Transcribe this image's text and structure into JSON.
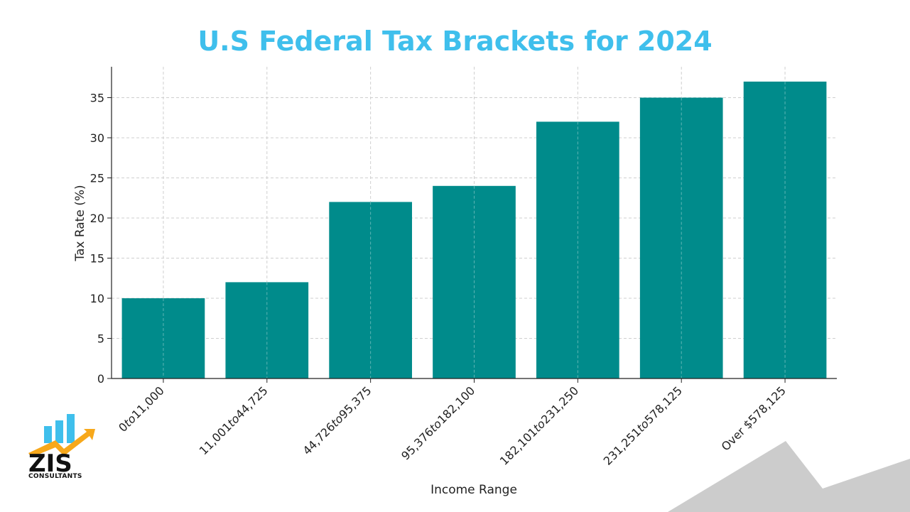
{
  "chart_data": {
    "type": "bar",
    "title": "U.S Federal Tax Brackets for 2024",
    "xlabel": "Income Range",
    "ylabel": "Tax Rate (%)",
    "categories": [
      "0to11,000",
      "11,001to44,725",
      "44,726to95,375",
      "95,376to182,100",
      "182,101to231,250",
      "231,251to578,125",
      "Over $578,125"
    ],
    "tick_display": [
      [
        {
          "t": "0",
          "i": false
        },
        {
          "t": "to",
          "i": true
        },
        {
          "t": "11,000",
          "i": false
        }
      ],
      [
        {
          "t": "11,001",
          "i": false
        },
        {
          "t": "to",
          "i": true
        },
        {
          "t": "44,725",
          "i": false
        }
      ],
      [
        {
          "t": "44,726",
          "i": false
        },
        {
          "t": "to",
          "i": true
        },
        {
          "t": "95,375",
          "i": false
        }
      ],
      [
        {
          "t": "95,376",
          "i": false
        },
        {
          "t": "to",
          "i": true
        },
        {
          "t": "182,100",
          "i": false
        }
      ],
      [
        {
          "t": "182,101",
          "i": false
        },
        {
          "t": "to",
          "i": true
        },
        {
          "t": "231,250",
          "i": false
        }
      ],
      [
        {
          "t": "231,251",
          "i": false
        },
        {
          "t": "to",
          "i": true
        },
        {
          "t": "578,125",
          "i": false
        }
      ],
      [
        {
          "t": "Over $578,125",
          "i": false
        }
      ]
    ],
    "values": [
      10,
      12,
      22,
      24,
      32,
      35,
      37
    ],
    "yticks": [
      0,
      5,
      10,
      15,
      20,
      25,
      30,
      35
    ],
    "ylim": [
      0,
      38.85
    ],
    "grid": true,
    "bar_color": "#008b8b"
  },
  "logo": {
    "text": "ZIS",
    "subtitle": "CONSULTANTS",
    "colors": {
      "bars": "#3fbfec",
      "arrow": "#f7a81b",
      "text": "#111111"
    }
  },
  "theme": {
    "title_color": "#3fbfec",
    "deco_color": "#cccccc"
  }
}
